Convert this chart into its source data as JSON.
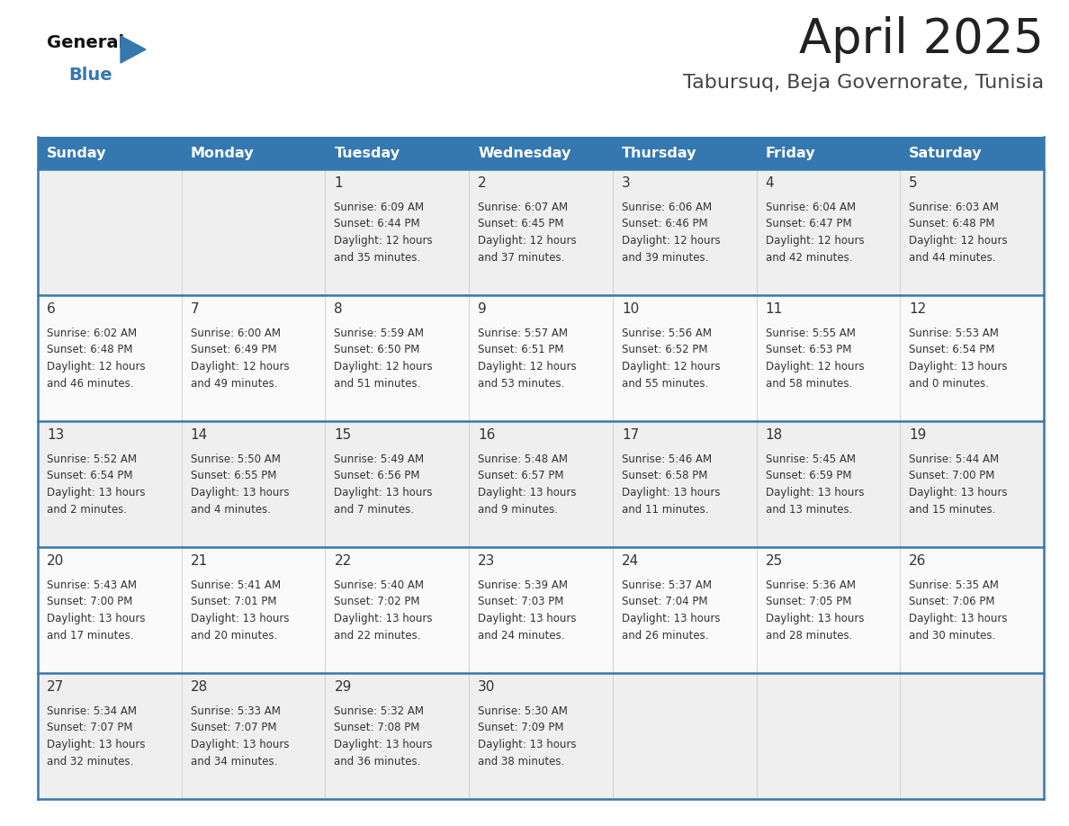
{
  "title": "April 2025",
  "subtitle": "Tabursuq, Beja Governorate, Tunisia",
  "days_of_week": [
    "Sunday",
    "Monday",
    "Tuesday",
    "Wednesday",
    "Thursday",
    "Friday",
    "Saturday"
  ],
  "header_bg_color": "#3578b0",
  "header_text_color": "#ffffff",
  "row_bg_colors": [
    "#eeeeee",
    "#f8f8f8"
  ],
  "cell_border_color": "#3578b0",
  "day_number_color": "#333333",
  "cell_text_color": "#333333",
  "title_color": "#222222",
  "subtitle_color": "#444444",
  "logo_black": "#111111",
  "logo_blue": "#3578b0",
  "triangle_color": "#3578b0",
  "calendar_data": [
    [
      {
        "day": "",
        "info": ""
      },
      {
        "day": "",
        "info": ""
      },
      {
        "day": "1",
        "info": "Sunrise: 6:09 AM\nSunset: 6:44 PM\nDaylight: 12 hours\nand 35 minutes."
      },
      {
        "day": "2",
        "info": "Sunrise: 6:07 AM\nSunset: 6:45 PM\nDaylight: 12 hours\nand 37 minutes."
      },
      {
        "day": "3",
        "info": "Sunrise: 6:06 AM\nSunset: 6:46 PM\nDaylight: 12 hours\nand 39 minutes."
      },
      {
        "day": "4",
        "info": "Sunrise: 6:04 AM\nSunset: 6:47 PM\nDaylight: 12 hours\nand 42 minutes."
      },
      {
        "day": "5",
        "info": "Sunrise: 6:03 AM\nSunset: 6:48 PM\nDaylight: 12 hours\nand 44 minutes."
      }
    ],
    [
      {
        "day": "6",
        "info": "Sunrise: 6:02 AM\nSunset: 6:48 PM\nDaylight: 12 hours\nand 46 minutes."
      },
      {
        "day": "7",
        "info": "Sunrise: 6:00 AM\nSunset: 6:49 PM\nDaylight: 12 hours\nand 49 minutes."
      },
      {
        "day": "8",
        "info": "Sunrise: 5:59 AM\nSunset: 6:50 PM\nDaylight: 12 hours\nand 51 minutes."
      },
      {
        "day": "9",
        "info": "Sunrise: 5:57 AM\nSunset: 6:51 PM\nDaylight: 12 hours\nand 53 minutes."
      },
      {
        "day": "10",
        "info": "Sunrise: 5:56 AM\nSunset: 6:52 PM\nDaylight: 12 hours\nand 55 minutes."
      },
      {
        "day": "11",
        "info": "Sunrise: 5:55 AM\nSunset: 6:53 PM\nDaylight: 12 hours\nand 58 minutes."
      },
      {
        "day": "12",
        "info": "Sunrise: 5:53 AM\nSunset: 6:54 PM\nDaylight: 13 hours\nand 0 minutes."
      }
    ],
    [
      {
        "day": "13",
        "info": "Sunrise: 5:52 AM\nSunset: 6:54 PM\nDaylight: 13 hours\nand 2 minutes."
      },
      {
        "day": "14",
        "info": "Sunrise: 5:50 AM\nSunset: 6:55 PM\nDaylight: 13 hours\nand 4 minutes."
      },
      {
        "day": "15",
        "info": "Sunrise: 5:49 AM\nSunset: 6:56 PM\nDaylight: 13 hours\nand 7 minutes."
      },
      {
        "day": "16",
        "info": "Sunrise: 5:48 AM\nSunset: 6:57 PM\nDaylight: 13 hours\nand 9 minutes."
      },
      {
        "day": "17",
        "info": "Sunrise: 5:46 AM\nSunset: 6:58 PM\nDaylight: 13 hours\nand 11 minutes."
      },
      {
        "day": "18",
        "info": "Sunrise: 5:45 AM\nSunset: 6:59 PM\nDaylight: 13 hours\nand 13 minutes."
      },
      {
        "day": "19",
        "info": "Sunrise: 5:44 AM\nSunset: 7:00 PM\nDaylight: 13 hours\nand 15 minutes."
      }
    ],
    [
      {
        "day": "20",
        "info": "Sunrise: 5:43 AM\nSunset: 7:00 PM\nDaylight: 13 hours\nand 17 minutes."
      },
      {
        "day": "21",
        "info": "Sunrise: 5:41 AM\nSunset: 7:01 PM\nDaylight: 13 hours\nand 20 minutes."
      },
      {
        "day": "22",
        "info": "Sunrise: 5:40 AM\nSunset: 7:02 PM\nDaylight: 13 hours\nand 22 minutes."
      },
      {
        "day": "23",
        "info": "Sunrise: 5:39 AM\nSunset: 7:03 PM\nDaylight: 13 hours\nand 24 minutes."
      },
      {
        "day": "24",
        "info": "Sunrise: 5:37 AM\nSunset: 7:04 PM\nDaylight: 13 hours\nand 26 minutes."
      },
      {
        "day": "25",
        "info": "Sunrise: 5:36 AM\nSunset: 7:05 PM\nDaylight: 13 hours\nand 28 minutes."
      },
      {
        "day": "26",
        "info": "Sunrise: 5:35 AM\nSunset: 7:06 PM\nDaylight: 13 hours\nand 30 minutes."
      }
    ],
    [
      {
        "day": "27",
        "info": "Sunrise: 5:34 AM\nSunset: 7:07 PM\nDaylight: 13 hours\nand 32 minutes."
      },
      {
        "day": "28",
        "info": "Sunrise: 5:33 AM\nSunset: 7:07 PM\nDaylight: 13 hours\nand 34 minutes."
      },
      {
        "day": "29",
        "info": "Sunrise: 5:32 AM\nSunset: 7:08 PM\nDaylight: 13 hours\nand 36 minutes."
      },
      {
        "day": "30",
        "info": "Sunrise: 5:30 AM\nSunset: 7:09 PM\nDaylight: 13 hours\nand 38 minutes."
      },
      {
        "day": "",
        "info": ""
      },
      {
        "day": "",
        "info": ""
      },
      {
        "day": "",
        "info": ""
      }
    ]
  ]
}
